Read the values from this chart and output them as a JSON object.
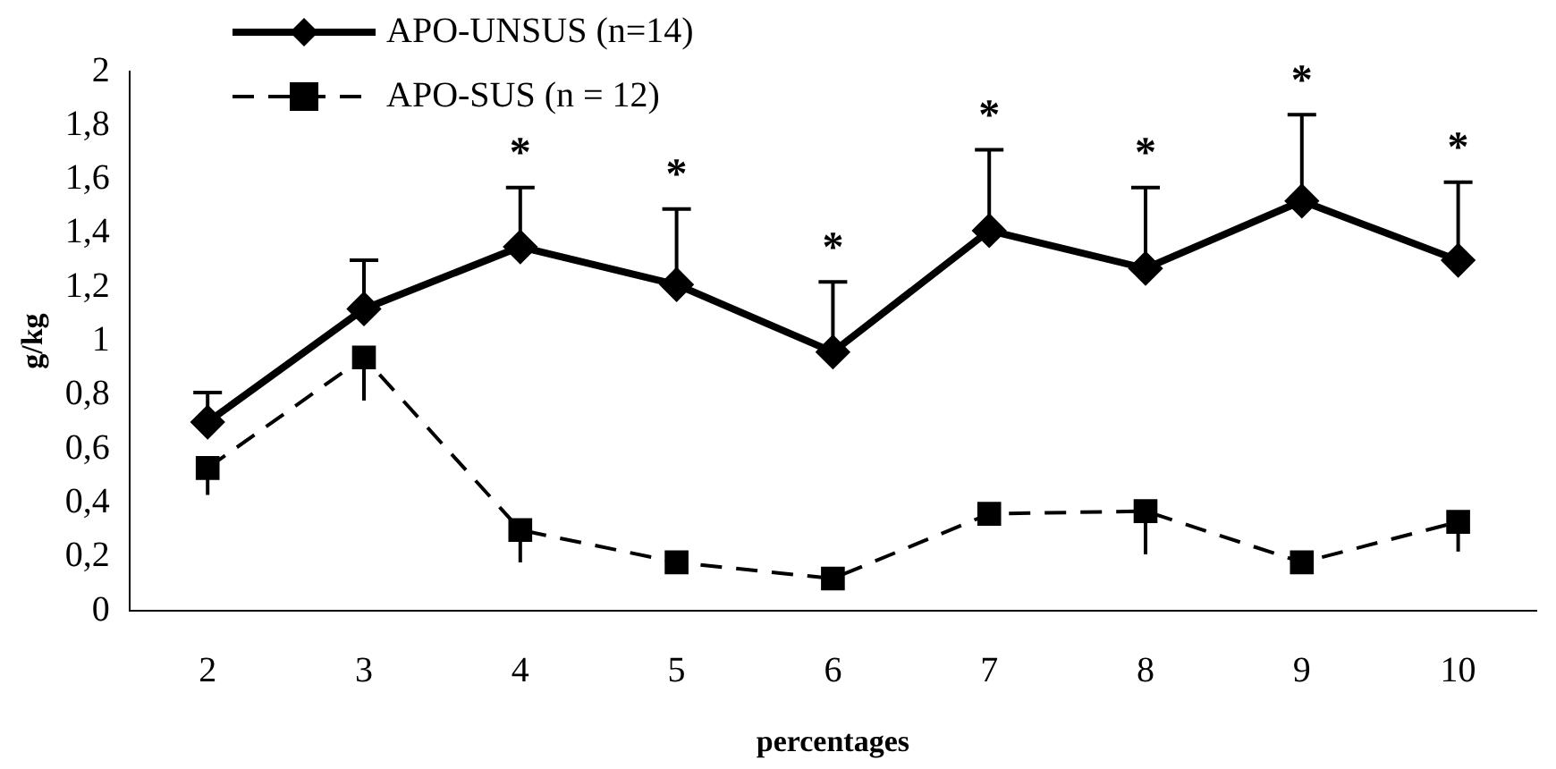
{
  "chart_data": {
    "type": "line",
    "xlabel": "percentages",
    "ylabel": "g/kg",
    "categories": [
      "2",
      "3",
      "4",
      "5",
      "6",
      "7",
      "8",
      "9",
      "10"
    ],
    "series": [
      {
        "name": "APO-UNSUS (n=14)",
        "color": "#000000",
        "marker": "diamond",
        "line_style": "solid",
        "values": [
          0.7,
          1.12,
          1.35,
          1.21,
          0.96,
          1.41,
          1.27,
          1.52,
          1.3
        ],
        "errors": [
          [
            0.7,
            0.81
          ],
          [
            1.12,
            1.3
          ],
          [
            1.35,
            1.57
          ],
          [
            1.21,
            1.49
          ],
          [
            0.96,
            1.22
          ],
          [
            1.41,
            1.71
          ],
          [
            1.27,
            1.57
          ],
          [
            1.52,
            1.84
          ],
          [
            1.3,
            1.59
          ]
        ]
      },
      {
        "name": "APO-SUS (n = 12)",
        "color": "#000000",
        "marker": "square",
        "line_style": "dashed",
        "values": [
          0.53,
          0.94,
          0.3,
          0.18,
          0.12,
          0.36,
          0.37,
          0.18,
          0.33
        ],
        "errors": [
          [
            0.43,
            0.53
          ],
          [
            0.78,
            0.94
          ],
          [
            0.18,
            0.3
          ],
          null,
          null,
          null,
          [
            0.21,
            0.37
          ],
          null,
          [
            0.22,
            0.33
          ]
        ]
      }
    ],
    "annotations": [
      {
        "text": "*",
        "x": "4",
        "y": 1.57
      },
      {
        "text": "*",
        "x": "5",
        "y": 1.49
      },
      {
        "text": "*",
        "x": "6",
        "y": 1.22
      },
      {
        "text": "*",
        "x": "7",
        "y": 1.71
      },
      {
        "text": "*",
        "x": "8",
        "y": 1.57
      },
      {
        "text": "*",
        "x": "9",
        "y": 1.84
      },
      {
        "text": "*",
        "x": "10",
        "y": 1.59
      }
    ],
    "ylim": [
      0,
      2
    ],
    "yticks": [
      {
        "value": 0,
        "label": "0"
      },
      {
        "value": 0.2,
        "label": "0,2"
      },
      {
        "value": 0.4,
        "label": "0,4"
      },
      {
        "value": 0.6,
        "label": "0,6"
      },
      {
        "value": 0.8,
        "label": "0,8"
      },
      {
        "value": 1,
        "label": "1"
      },
      {
        "value": 1.2,
        "label": "1,2"
      },
      {
        "value": 1.4,
        "label": "1,4"
      },
      {
        "value": 1.6,
        "label": "1,6"
      },
      {
        "value": 1.8,
        "label": "1,8"
      },
      {
        "value": 2,
        "label": "2"
      }
    ],
    "grid": false,
    "legend": "top left"
  }
}
